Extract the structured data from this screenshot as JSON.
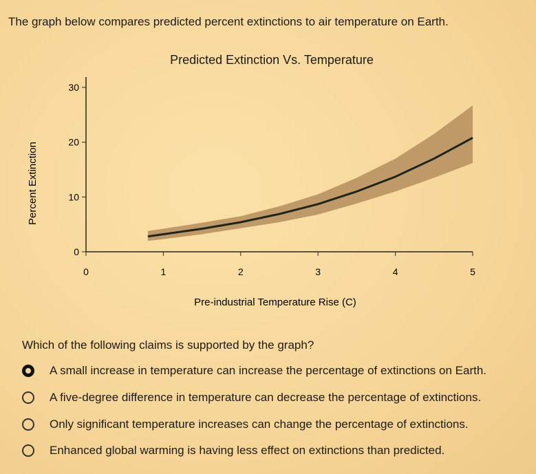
{
  "intro": "The graph below compares predicted percent extinctions to air temperature on Earth.",
  "chart_data": {
    "type": "line",
    "title": "Predicted Extinction Vs. Temperature",
    "xlabel": "Pre-industrial Temperature Rise (C)",
    "ylabel": "Percent Extinction",
    "xlim": [
      0,
      5
    ],
    "ylim": [
      0,
      30
    ],
    "xticks": [
      "0",
      "1",
      "2",
      "3",
      "4",
      "5"
    ],
    "yticks": [
      "0",
      "10",
      "20",
      "30"
    ],
    "grid": false,
    "x": [
      0.8,
      1,
      1.5,
      2,
      2.5,
      3,
      3.5,
      4,
      4.5,
      5
    ],
    "values": [
      2.8,
      3.2,
      4.2,
      5.4,
      6.9,
      8.7,
      11,
      13.7,
      17,
      20.8
    ],
    "band_lower": [
      2.0,
      2.3,
      3.2,
      4.3,
      5.4,
      6.8,
      8.8,
      11,
      13.5,
      16.2
    ],
    "band_upper": [
      3.8,
      4.2,
      5.3,
      6.5,
      8.3,
      10.5,
      13.5,
      17,
      21.5,
      26.7
    ],
    "colors": {
      "line": "#1e2418",
      "band": "#bf9a68",
      "axis": "#2a2418"
    }
  },
  "question": "Which of the following claims is supported by the graph?",
  "options": [
    {
      "label": "A small increase in temperature can increase the percentage of extinctions on Earth.",
      "selected": true
    },
    {
      "label": "A five-degree difference in temperature can decrease the percentage of extinctions.",
      "selected": false
    },
    {
      "label": "Only significant temperature increases can change the percentage of extinctions.",
      "selected": false
    },
    {
      "label": "Enhanced global warming is having less effect on extinctions than predicted.",
      "selected": false
    }
  ]
}
